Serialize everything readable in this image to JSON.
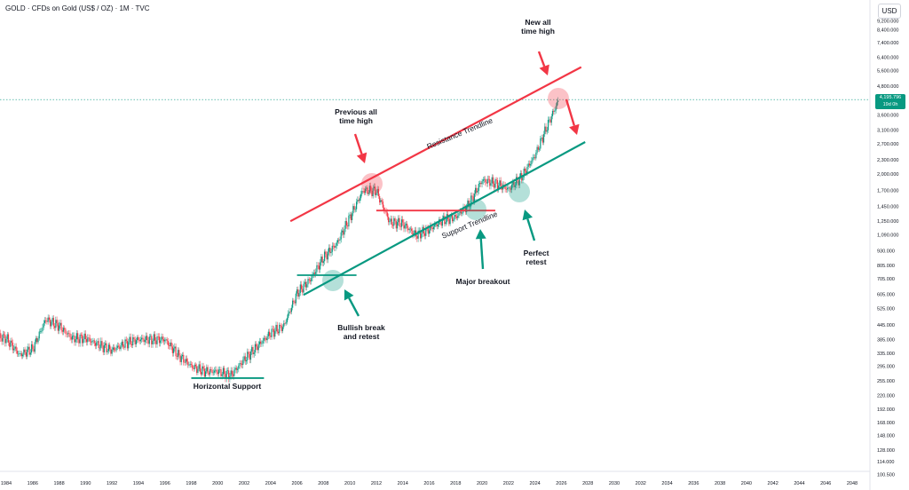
{
  "header": {
    "title": "GOLD · CFDs on Gold (US$ / OZ) · 1M · TVC",
    "currency": "USD"
  },
  "price_label": {
    "value": "4,195.796",
    "sub": "19d 0h"
  },
  "chart_data": {
    "type": "candlestick",
    "title": "GOLD · CFDs on Gold (US$ / OZ) · 1M · TVC",
    "xlabel": "",
    "ylabel": "",
    "scale": "log",
    "grid": false,
    "x_ticks": [
      "1984",
      "1986",
      "1988",
      "1990",
      "1992",
      "1994",
      "1996",
      "1998",
      "2000",
      "2002",
      "2004",
      "2006",
      "2008",
      "2010",
      "2012",
      "2014",
      "2016",
      "2018",
      "2020",
      "2022",
      "2024",
      "2026",
      "2028",
      "2030",
      "2032",
      "2034",
      "2036",
      "2038",
      "2040",
      "2042",
      "2044",
      "2046",
      "2048"
    ],
    "y_ticks": [
      {
        "label": "9,200.000",
        "value": 9200
      },
      {
        "label": "8,400.000",
        "value": 8400
      },
      {
        "label": "7,400.000",
        "value": 7400
      },
      {
        "label": "6,400.000",
        "value": 6400
      },
      {
        "label": "5,600.000",
        "value": 5600
      },
      {
        "label": "4,800.000",
        "value": 4800
      },
      {
        "label": "3,600.000",
        "value": 3600
      },
      {
        "label": "3,100.000",
        "value": 3100
      },
      {
        "label": "2,700.000",
        "value": 2700
      },
      {
        "label": "2,300.000",
        "value": 2300
      },
      {
        "label": "2,000.000",
        "value": 2000
      },
      {
        "label": "1,700.000",
        "value": 1700
      },
      {
        "label": "1,450.000",
        "value": 1450
      },
      {
        "label": "1,250.000",
        "value": 1250
      },
      {
        "label": "1,090.000",
        "value": 1090
      },
      {
        "label": "930.000",
        "value": 930
      },
      {
        "label": "805.000",
        "value": 805
      },
      {
        "label": "705.000",
        "value": 705
      },
      {
        "label": "605.000",
        "value": 605
      },
      {
        "label": "525.000",
        "value": 525
      },
      {
        "label": "445.000",
        "value": 445
      },
      {
        "label": "385.000",
        "value": 385
      },
      {
        "label": "335.000",
        "value": 335
      },
      {
        "label": "295.000",
        "value": 295
      },
      {
        "label": "255.000",
        "value": 255
      },
      {
        "label": "220.000",
        "value": 220
      },
      {
        "label": "192.000",
        "value": 192
      },
      {
        "label": "168.000",
        "value": 168
      },
      {
        "label": "148.000",
        "value": 148
      },
      {
        "label": "128.000",
        "value": 128
      },
      {
        "label": "114.000",
        "value": 114
      },
      {
        "label": "100.500",
        "value": 100.5
      }
    ],
    "series": [
      {
        "points": [
          [
            1983,
            400
          ],
          [
            1984,
            390
          ],
          [
            1985,
            330
          ],
          [
            1986,
            350
          ],
          [
            1987,
            470
          ],
          [
            1988,
            440
          ],
          [
            1989,
            390
          ],
          [
            1990,
            390
          ],
          [
            1991,
            365
          ],
          [
            1992,
            345
          ],
          [
            1993,
            370
          ],
          [
            1994,
            385
          ],
          [
            1995,
            385
          ],
          [
            1996,
            385
          ],
          [
            1997,
            330
          ],
          [
            1998,
            295
          ],
          [
            1999,
            280
          ],
          [
            2000,
            280
          ],
          [
            2001,
            270
          ],
          [
            2002,
            315
          ],
          [
            2003,
            360
          ],
          [
            2004,
            410
          ],
          [
            2005,
            440
          ],
          [
            2006,
            610
          ],
          [
            2007,
            700
          ],
          [
            2008,
            870
          ],
          [
            2009,
            1000
          ],
          [
            2010,
            1300
          ],
          [
            2011,
            1700
          ],
          [
            2012,
            1690
          ],
          [
            2013,
            1240
          ],
          [
            2014,
            1220
          ],
          [
            2015,
            1090
          ],
          [
            2016,
            1150
          ],
          [
            2017,
            1260
          ],
          [
            2018,
            1300
          ],
          [
            2019,
            1480
          ],
          [
            2020,
            1880
          ],
          [
            2021,
            1830
          ],
          [
            2022,
            1720
          ],
          [
            2023,
            1950
          ],
          [
            2024,
            2400
          ],
          [
            2025,
            3300
          ],
          [
            2025.8,
            4195.796
          ]
        ]
      }
    ],
    "annotations": [
      {
        "type": "trendline",
        "label": "Resistance Trendline",
        "color": "#f23645",
        "from": [
          2005.5,
          1250
        ],
        "to": [
          2027.5,
          5800
        ]
      },
      {
        "type": "trendline",
        "label": "Support Trendline",
        "color": "#089981",
        "from": [
          2006.5,
          600
        ],
        "to": [
          2027.8,
          2750
        ]
      },
      {
        "type": "hline",
        "color": "#089981",
        "x": [
          2006,
          2010.5
        ],
        "y": 730
      },
      {
        "type": "hline",
        "color": "#f23645",
        "x": [
          2012,
          2021
        ],
        "y": 1390
      },
      {
        "type": "hline",
        "color": "#089981",
        "x": [
          1998,
          2003.5
        ],
        "y": 262
      },
      {
        "type": "text",
        "label": "Previous all\ntime high"
      },
      {
        "type": "text",
        "label": "New all\ntime high"
      },
      {
        "type": "text",
        "label": "Major breakout"
      },
      {
        "type": "text",
        "label": "Perfect\nretest"
      },
      {
        "type": "text",
        "label": "Bullish break\nand retest"
      },
      {
        "type": "text",
        "label": "Horizontal Support"
      }
    ]
  }
}
